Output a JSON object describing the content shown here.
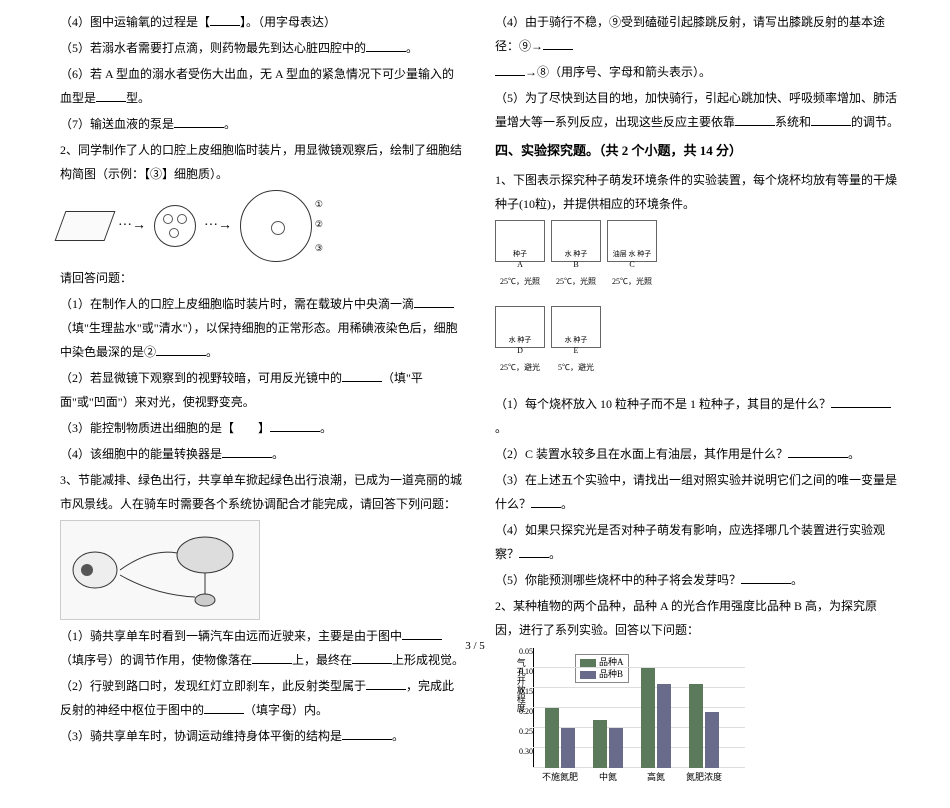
{
  "left": {
    "q4": "（4）图中运输氧的过程是【",
    "q4b": "】。（用字母表达）",
    "q5": "（5）若溺水者需要打点滴，则药物最先到达心脏四腔中的",
    "q5b": "。",
    "q6": "（6）若 A 型血的溺水者受伤大出血，无 A 型血的紧急情况下可少量输入的血型是",
    "q6b": "型。",
    "q7": "（7）输送血液的泵是",
    "q7b": "。",
    "p2": "2、同学制作了人的口腔上皮细胞临时装片，用显微镜观察后，绘制了细胞结构简图（示例：【③】细胞质）。",
    "askTitle": "请回答问题：",
    "p2q1a": "（1）在制作人的口腔上皮细胞临时装片时，需在载玻片中央滴一滴",
    "p2q1b": "（填\"生理盐水\"或\"清水\"），以保持细胞的正常形态。用稀碘液染色后，细胞中染色最深的是②",
    "p2q1c": "。",
    "p2q2a": "（2）若显微镜下观察到的视野较暗，可用反光镜中的",
    "p2q2b": "（填\"平面\"或\"凹面\"）来对光，使视野变亮。",
    "p2q3": "（3）能控制物质进出细胞的是【　　】",
    "p2q3b": "。",
    "p2q4": "（4）该细胞中的能量转换器是",
    "p2q4b": "。",
    "p3": "3、节能减排、绿色出行，共享单车掀起绿色出行浪潮，已成为一道亮丽的城市风景线。人在骑车时需要各个系统协调配合才能完成，请回答下列问题：",
    "p3q1a": "（1）骑共享单车时看到一辆汽车由远而近驶来，主要是由于图中",
    "p3q1b": "（填序号）的调节作用，使物像落在",
    "p3q1c": "上，最终在",
    "p3q1d": "上形成视觉。",
    "p3q2a": "（2）行驶到路口时，发现红灯立即刹车，此反射类型属于",
    "p3q2b": "，完成此反射的神经中枢位于图中的",
    "p3q2c": "（填字母）内。",
    "p3q3a": "（3）骑共享单车时，协调运动维持身体平衡的结构是",
    "p3q3b": "。"
  },
  "right": {
    "p3q4a": "（4）由于骑行不稳，⑨受到磕碰引起膝跳反射，请写出膝跳反射的基本途径：⑨→",
    "p3q4b": "→⑧（用序号、字母和箭头表示）。",
    "p3q5a": "（5）为了尽快到达目的地，加快骑行，引起心跳加快、呼吸频率增加、肺活量增大等一系列反应，出现这些反应主要依靠",
    "p3q5b": "系统和",
    "p3q5c": "的调节。",
    "sectionTitle": "四、实验探究题。（共 2 个小题，共 14 分）",
    "e1": "1、下图表示探究种子萌发环境条件的实验装置，每个烧杯均放有等量的干燥种子(10粒)，并提供相应的环境条件。",
    "beakers": {
      "row1": [
        {
          "label": "A",
          "caption": "25℃，光照",
          "text": "种子"
        },
        {
          "label": "B",
          "caption": "25℃，光照",
          "text": "水 种子"
        },
        {
          "label": "C",
          "caption": "25℃，光照",
          "text": "油层 水 种子"
        }
      ],
      "row2": [
        {
          "label": "D",
          "caption": "25℃，避光",
          "text": "水 种子"
        },
        {
          "label": "E",
          "caption": "5℃，避光",
          "text": "水 种子"
        }
      ]
    },
    "e1q1": "（1）每个烧杯放入 10 粒种子而不是 1 粒种子，其目的是什么？",
    "e1q1b": "。",
    "e1q2": "（2）C 装置水较多且在水面上有油层，其作用是什么？",
    "e1q2b": "。",
    "e1q3": "（3）在上述五个实验中，请找出一组对照实验并说明它们之间的唯一变量是什么？",
    "e1q3b": "。",
    "e1q4": "（4）如果只探究光是否对种子萌发有影响，应选择哪几个装置进行实验观察？",
    "e1q4b": "。",
    "e1q5": "（5）你能预测哪些烧杯中的种子将会发芽吗？",
    "e1q5b": "。",
    "e2": "2、某种植物的两个品种，品种 A 的光合作用强度比品种 B 高，为探究原因，进行了系列实验。回答以下问题：",
    "chart": {
      "ylabel": "气孔开放程度",
      "yticks": [
        "0.30",
        "0.25",
        "0.20",
        "0.15",
        "0.10",
        "0.05"
      ],
      "series": [
        {
          "name": "品种A",
          "color": "#5b7a5b"
        },
        {
          "name": "品种B",
          "color": "#6a6a8a"
        }
      ],
      "categories": [
        "不施氮肥",
        "中氮",
        "高氮",
        "氮肥浓度"
      ],
      "valuesA": [
        0.15,
        0.12,
        0.25,
        0.21
      ],
      "valuesB": [
        0.1,
        0.1,
        0.21,
        0.14
      ],
      "ylim": 0.3
    }
  },
  "pagenum": "3 / 5"
}
